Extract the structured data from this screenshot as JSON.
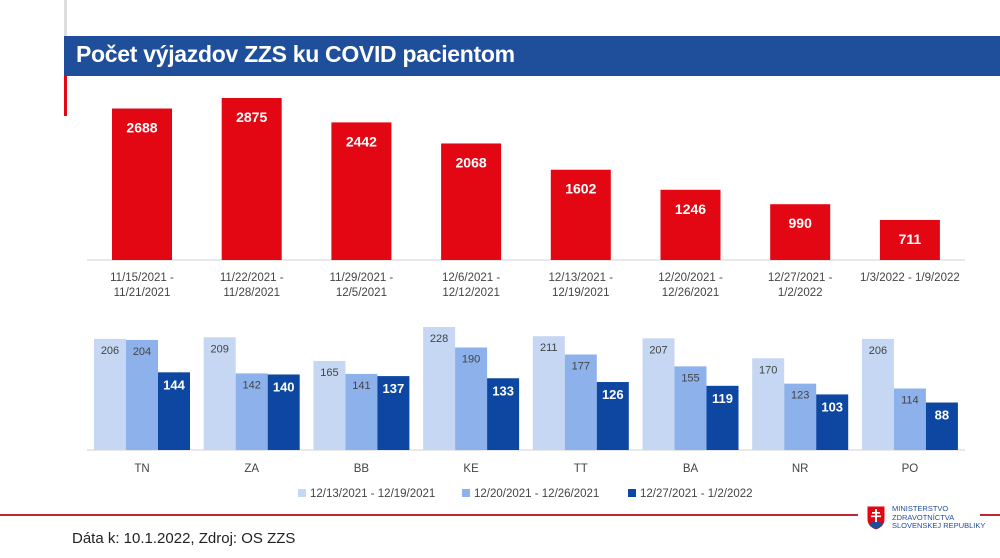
{
  "header": {
    "title": "Počet výjazdov ZZS ku COVID pacientom"
  },
  "footer": {
    "source": "Dáta k: 10.1.2022, Zdroj: OS ZZS"
  },
  "logo": {
    "lines": [
      "MINISTERSTVO",
      "ZDRAVOTNÍCTVA",
      "SLOVENSKEJ REPUBLIKY"
    ]
  },
  "chart_data": [
    {
      "type": "bar",
      "title": "",
      "color": "#e30613",
      "categories": [
        "11/15/2021 - 11/21/2021",
        "11/22/2021 - 11/28/2021",
        "11/29/2021 - 12/5/2021",
        "12/6/2021 - 12/12/2021",
        "12/13/2021 - 12/19/2021",
        "12/20/2021 - 12/26/2021",
        "12/27/2021 - 1/2/2022",
        "1/3/2022 - 1/9/2022"
      ],
      "category_lines": [
        [
          "11/15/2021 -",
          "11/21/2021"
        ],
        [
          "11/22/2021 -",
          "11/28/2021"
        ],
        [
          "11/29/2021 -",
          "12/5/2021"
        ],
        [
          "12/6/2021 -",
          "12/12/2021"
        ],
        [
          "12/13/2021 -",
          "12/19/2021"
        ],
        [
          "12/20/2021 -",
          "12/26/2021"
        ],
        [
          "12/27/2021 -",
          "1/2/2022"
        ],
        [
          "1/3/2022 - 1/9/2022"
        ]
      ],
      "values": [
        2688,
        2875,
        2442,
        2068,
        1602,
        1246,
        990,
        711
      ]
    },
    {
      "type": "bar",
      "title": "",
      "legend": "bottom",
      "categories": [
        "TN",
        "ZA",
        "BB",
        "KE",
        "TT",
        "BA",
        "NR",
        "PO"
      ],
      "series": [
        {
          "name": "12/13/2021 - 12/19/2021",
          "color": "#c5d7f2",
          "values": [
            206,
            209,
            165,
            228,
            211,
            207,
            170,
            206
          ]
        },
        {
          "name": "12/20/2021 - 12/26/2021",
          "color": "#8db1ea",
          "values": [
            204,
            142,
            141,
            190,
            177,
            155,
            123,
            114
          ]
        },
        {
          "name": "12/27/2021 - 1/2/2022",
          "color": "#0d47a1",
          "values": [
            144,
            140,
            137,
            133,
            126,
            119,
            103,
            88
          ]
        }
      ]
    }
  ]
}
